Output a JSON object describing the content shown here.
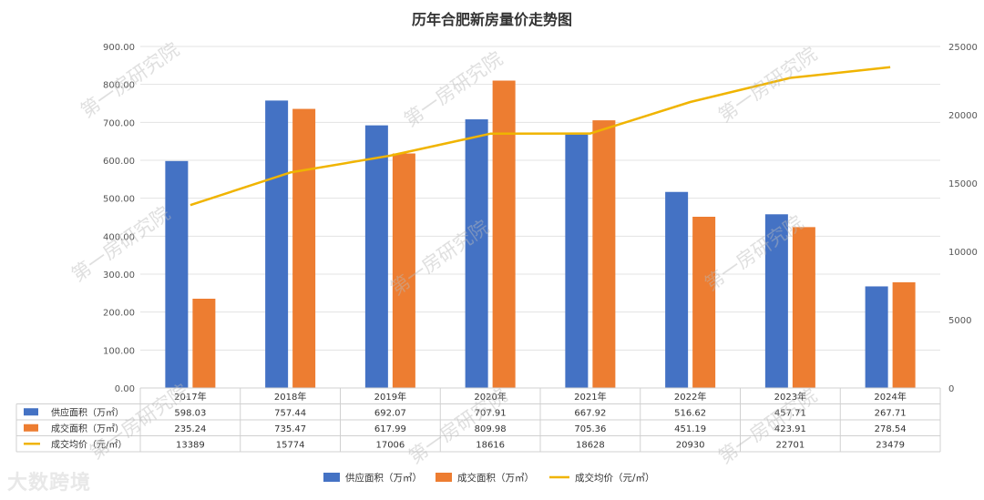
{
  "chart_data": {
    "type": "bar",
    "title": "历年合肥新房量价走势图",
    "categories": [
      "2017年",
      "2018年",
      "2019年",
      "2020年",
      "2021年",
      "2022年",
      "2023年",
      "2024年"
    ],
    "series": [
      {
        "name": "供应面积（万㎡）",
        "kind": "bar",
        "axis": "left",
        "color": "#4472c4",
        "values": [
          598.03,
          757.44,
          692.07,
          707.91,
          667.92,
          516.62,
          457.71,
          267.71
        ],
        "labels": [
          "598.03",
          "757.44",
          "692.07",
          "707.91",
          "667.92",
          "516.62",
          "457.71",
          "267.71"
        ]
      },
      {
        "name": "成交面积（万㎡）",
        "kind": "bar",
        "axis": "left",
        "color": "#ed7d31",
        "values": [
          235.24,
          735.47,
          617.99,
          809.98,
          705.36,
          451.19,
          423.91,
          278.54
        ],
        "labels": [
          "235.24",
          "735.47",
          "617.99",
          "809.98",
          "705.36",
          "451.19",
          "423.91",
          "278.54"
        ]
      },
      {
        "name": "成交均价（元/㎡）",
        "kind": "line",
        "axis": "right",
        "color": "#f0b400",
        "values": [
          13389,
          15774,
          17006,
          18616,
          18628,
          20930,
          22701,
          23479
        ],
        "labels": [
          "13389",
          "15774",
          "17006",
          "18616",
          "18628",
          "20930",
          "22701",
          "23479"
        ]
      }
    ],
    "y_left": {
      "min": 0,
      "max": 900,
      "step": 100,
      "ticks": [
        "0.00",
        "100.00",
        "200.00",
        "300.00",
        "400.00",
        "500.00",
        "600.00",
        "700.00",
        "800.00",
        "900.00"
      ]
    },
    "y_right": {
      "min": 0,
      "max": 25000,
      "step": 5000,
      "ticks": [
        "0",
        "5000",
        "10000",
        "15000",
        "20000",
        "25000"
      ]
    },
    "grid": true,
    "legend": "bottom",
    "data_table": true
  },
  "watermark": "第一房研究院",
  "brand": "大数跨境"
}
